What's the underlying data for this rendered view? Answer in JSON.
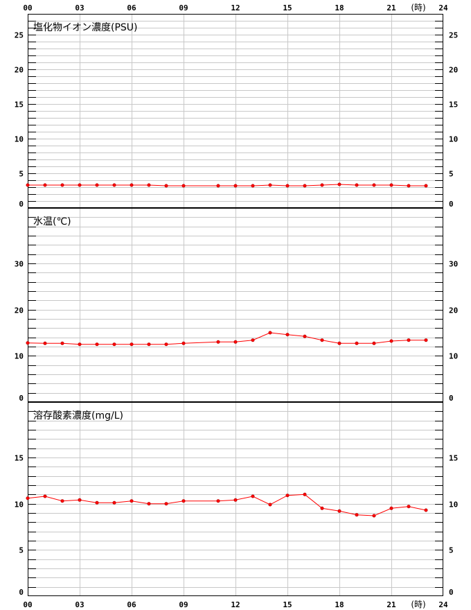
{
  "x_axis": {
    "min": 0,
    "max": 24,
    "ticks": [
      0,
      3,
      6,
      9,
      12,
      15,
      18,
      21,
      24
    ],
    "tick_labels": [
      "00",
      "03",
      "06",
      "09",
      "12",
      "15",
      "18",
      "21",
      "24"
    ],
    "unit_label": "(時)"
  },
  "colors": {
    "series": "#ff0000",
    "grid": "#c8c8c8",
    "axis": "#000000"
  },
  "chart_data": [
    {
      "type": "line",
      "title": "塩化物イオン濃度(PSU)",
      "ylim": [
        0,
        28
      ],
      "yticks": [
        0,
        5,
        10,
        15,
        20,
        25
      ],
      "minor_step": 1,
      "grid": true,
      "series": [
        {
          "x": [
            0,
            1,
            2,
            3,
            4,
            5,
            6,
            7,
            8,
            9,
            11,
            12,
            13,
            14,
            15,
            16,
            17,
            18,
            19,
            20,
            21,
            22,
            23
          ],
          "y": [
            3.3,
            3.3,
            3.3,
            3.3,
            3.3,
            3.3,
            3.3,
            3.3,
            3.2,
            3.2,
            3.2,
            3.2,
            3.2,
            3.3,
            3.2,
            3.2,
            3.3,
            3.4,
            3.3,
            3.3,
            3.3,
            3.2,
            3.2
          ]
        }
      ]
    },
    {
      "type": "line",
      "title": "水温(℃)",
      "ylim": [
        0,
        42
      ],
      "yticks": [
        0,
        10,
        20,
        30
      ],
      "minor_step": 2,
      "grid": true,
      "series": [
        {
          "x": [
            0,
            1,
            2,
            3,
            4,
            5,
            6,
            7,
            8,
            9,
            11,
            12,
            13,
            14,
            15,
            16,
            17,
            18,
            19,
            20,
            21,
            22,
            23
          ],
          "y": [
            12.8,
            12.7,
            12.7,
            12.5,
            12.5,
            12.5,
            12.5,
            12.5,
            12.5,
            12.7,
            13.0,
            13.0,
            13.4,
            15.0,
            14.6,
            14.2,
            13.4,
            12.7,
            12.7,
            12.7,
            13.2,
            13.4,
            13.4
          ]
        }
      ]
    },
    {
      "type": "line",
      "title": "溶存酸素濃度(mg/L)",
      "ylim": [
        0,
        21
      ],
      "yticks": [
        0,
        5,
        10,
        15
      ],
      "minor_step": 1,
      "grid": true,
      "series": [
        {
          "x": [
            0,
            1,
            2,
            3,
            4,
            5,
            6,
            7,
            8,
            9,
            11,
            12,
            13,
            14,
            15,
            16,
            17,
            18,
            19,
            20,
            21,
            22,
            23
          ],
          "y": [
            10.6,
            10.8,
            10.3,
            10.4,
            10.1,
            10.1,
            10.3,
            10.0,
            10.0,
            10.3,
            10.3,
            10.4,
            10.8,
            9.9,
            10.9,
            11.0,
            9.5,
            9.2,
            8.8,
            8.7,
            9.5,
            9.7,
            9.3
          ]
        }
      ]
    }
  ]
}
